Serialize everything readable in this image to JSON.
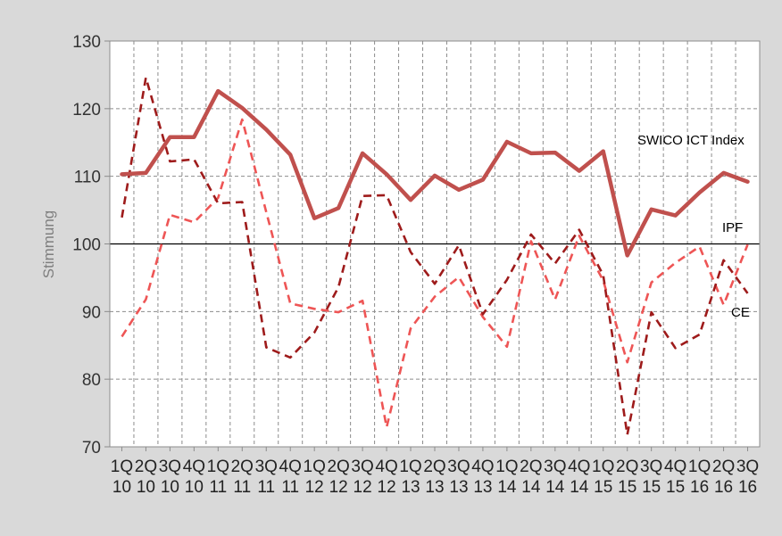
{
  "chart_data": {
    "type": "line",
    "title": "",
    "ylabel": "Stimmung",
    "xlabel": "",
    "ylim": [
      70,
      130
    ],
    "yticks": [
      70,
      80,
      90,
      100,
      110,
      120,
      130
    ],
    "grid": true,
    "reference_line": 100,
    "categories": [
      {
        "q": "1Q",
        "y": "10"
      },
      {
        "q": "2Q",
        "y": "10"
      },
      {
        "q": "3Q",
        "y": "10"
      },
      {
        "q": "4Q",
        "y": "10"
      },
      {
        "q": "1Q",
        "y": "11"
      },
      {
        "q": "2Q",
        "y": "11"
      },
      {
        "q": "3Q",
        "y": "11"
      },
      {
        "q": "4Q",
        "y": "11"
      },
      {
        "q": "1Q",
        "y": "12"
      },
      {
        "q": "2Q",
        "y": "12"
      },
      {
        "q": "3Q",
        "y": "12"
      },
      {
        "q": "4Q",
        "y": "12"
      },
      {
        "q": "1Q",
        "y": "13"
      },
      {
        "q": "2Q",
        "y": "13"
      },
      {
        "q": "3Q",
        "y": "13"
      },
      {
        "q": "4Q",
        "y": "13"
      },
      {
        "q": "1Q",
        "y": "14"
      },
      {
        "q": "2Q",
        "y": "14"
      },
      {
        "q": "3Q",
        "y": "14"
      },
      {
        "q": "4Q",
        "y": "14"
      },
      {
        "q": "1Q",
        "y": "15"
      },
      {
        "q": "2Q",
        "y": "15"
      },
      {
        "q": "3Q",
        "y": "15"
      },
      {
        "q": "4Q",
        "y": "15"
      },
      {
        "q": "1Q",
        "y": "16"
      },
      {
        "q": "2Q",
        "y": "16"
      },
      {
        "q": "3Q",
        "y": "16"
      }
    ],
    "series": [
      {
        "name": "SWICO ICT Index",
        "color": "#c0504d",
        "style": "solid",
        "values": [
          110.3,
          110.5,
          115.8,
          115.8,
          122.6,
          120.1,
          116.9,
          113.2,
          103.8,
          105.3,
          113.4,
          110.3,
          106.5,
          110.1,
          108.0,
          109.5,
          115.1,
          113.4,
          113.5,
          110.8,
          113.7,
          98.3,
          105.1,
          104.2,
          107.6,
          110.5,
          109.2
        ]
      },
      {
        "name": "IPF",
        "color": "#9e1b1b",
        "style": "dashed",
        "values": [
          103.9,
          124.6,
          112.2,
          112.5,
          106.0,
          106.2,
          84.7,
          83.2,
          86.9,
          93.6,
          107.1,
          107.2,
          98.8,
          94.1,
          99.8,
          89.6,
          94.7,
          101.4,
          97.1,
          102.1,
          95.4,
          71.8,
          89.9,
          84.6,
          86.6,
          97.6,
          92.7
        ]
      },
      {
        "name": "CE",
        "color": "#ee5555",
        "style": "dashed",
        "values": [
          86.3,
          91.8,
          104.3,
          103.2,
          106.8,
          118.4,
          104.7,
          91.2,
          90.4,
          89.9,
          91.6,
          72.9,
          87.5,
          92.2,
          95.1,
          89.2,
          84.8,
          100.4,
          91.8,
          101.2,
          94.6,
          82.5,
          94.3,
          97.2,
          99.6,
          91.0,
          99.9
        ]
      }
    ],
    "labels": {
      "swico": "SWICO ICT Index",
      "ipf": "IPF",
      "ce": "CE"
    }
  }
}
